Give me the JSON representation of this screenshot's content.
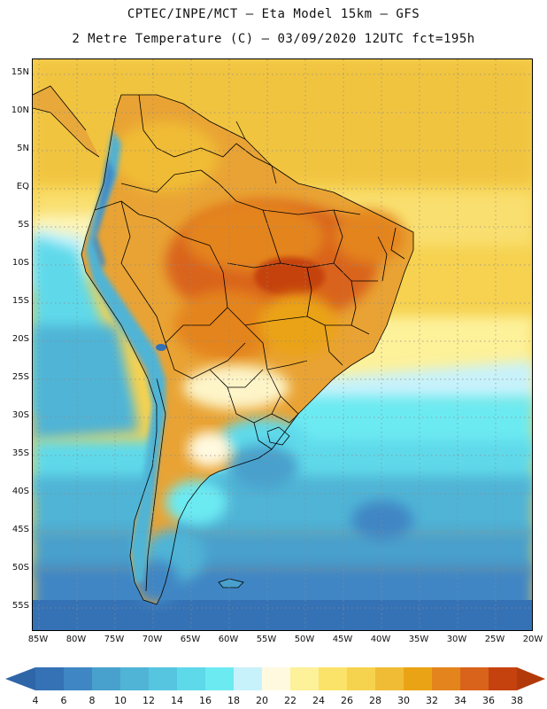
{
  "header": {
    "line1": "CPTEC/INPE/MCT –  Eta Model 15km – GFS",
    "line2": "2 Metre Temperature (C) – 03/09/2020 12UTC fct=195h"
  },
  "map": {
    "lat_labels": [
      "15N",
      "10N",
      "5N",
      "EQ",
      "5S",
      "10S",
      "15S",
      "20S",
      "25S",
      "30S",
      "35S",
      "40S",
      "45S",
      "50S",
      "55S"
    ],
    "lon_labels": [
      "85W",
      "80W",
      "75W",
      "70W",
      "65W",
      "60W",
      "55W",
      "50W",
      "45W",
      "40W",
      "35W",
      "30W",
      "25W",
      "20W"
    ]
  },
  "colorbar": {
    "labels": [
      "4",
      "6",
      "8",
      "10",
      "12",
      "14",
      "16",
      "18",
      "20",
      "22",
      "24",
      "26",
      "28",
      "30",
      "32",
      "34",
      "36",
      "38"
    ],
    "low_color": "#2f66a8",
    "high_color": "#b23a0a",
    "colors": [
      "#3572b5",
      "#3f86c4",
      "#48a0cc",
      "#4fb4d6",
      "#56c6e0",
      "#5ed9ea",
      "#6ceaf2",
      "#c8f2fb",
      "#fff9e0",
      "#fdf19a",
      "#fbe36a",
      "#f6d34e",
      "#f0bc36",
      "#eaa315",
      "#e4841c",
      "#d9631a",
      "#c5420f"
    ]
  }
}
